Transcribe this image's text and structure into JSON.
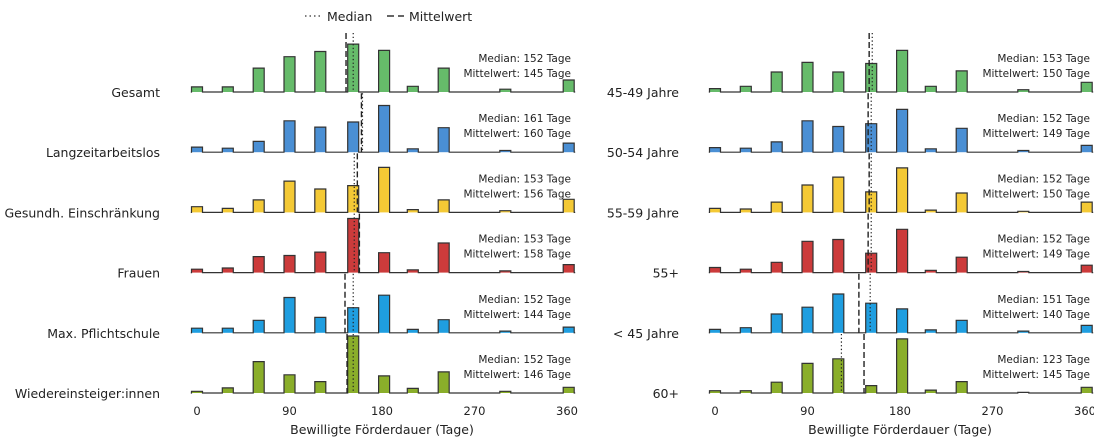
{
  "legend": {
    "median_label": "Median",
    "mean_label": "Mittelwert"
  },
  "colors": {
    "green": "#66bb6a",
    "blue": "#4a8fd4",
    "yellow": "#f4c935",
    "red": "#cc3b3b",
    "cyan": "#1f9ee0",
    "olive": "#8aae2a",
    "outline": "#333333"
  },
  "chart_data": [
    {
      "type": "area",
      "xlabel": "Bewilligte Förderdauer (Tage)",
      "xlim": [
        0,
        366
      ],
      "xticks": [
        0,
        90,
        180,
        270,
        360
      ],
      "rows": [
        {
          "name": "Gesamt",
          "color": "green",
          "median": 152,
          "mean": 145,
          "median_text": "Median: 152 Tage",
          "mean_text": "Mittelwert: 145 Tage",
          "bins": [
            [
              0,
              0.09
            ],
            [
              30,
              0.09
            ],
            [
              60,
              0.42
            ],
            [
              90,
              0.62
            ],
            [
              120,
              0.71
            ],
            [
              152,
              0.84
            ],
            [
              182,
              0.73
            ],
            [
              210,
              0.1
            ],
            [
              240,
              0.42
            ],
            [
              300,
              0.05
            ],
            [
              365,
              0.21
            ]
          ]
        },
        {
          "name": "Langzeitarbeitslos",
          "color": "blue",
          "median": 161,
          "mean": 160,
          "median_text": "Median: 161 Tage",
          "mean_text": "Mittelwert: 160 Tage",
          "bins": [
            [
              0,
              0.09
            ],
            [
              30,
              0.07
            ],
            [
              60,
              0.19
            ],
            [
              90,
              0.55
            ],
            [
              120,
              0.44
            ],
            [
              152,
              0.53
            ],
            [
              182,
              0.82
            ],
            [
              210,
              0.06
            ],
            [
              240,
              0.43
            ],
            [
              300,
              0.03
            ],
            [
              365,
              0.16
            ]
          ]
        },
        {
          "name": "Gesundh. Einschränkung",
          "color": "yellow",
          "median": 153,
          "mean": 156,
          "median_text": "Median: 153 Tage",
          "mean_text": "Mittelwert: 156 Tage",
          "bins": [
            [
              0,
              0.1
            ],
            [
              30,
              0.07
            ],
            [
              60,
              0.22
            ],
            [
              90,
              0.55
            ],
            [
              120,
              0.41
            ],
            [
              152,
              0.47
            ],
            [
              182,
              0.79
            ],
            [
              210,
              0.05
            ],
            [
              240,
              0.22
            ],
            [
              300,
              0.03
            ],
            [
              365,
              0.23
            ]
          ]
        },
        {
          "name": "Frauen",
          "color": "red",
          "median": 153,
          "mean": 158,
          "median_text": "Median: 153 Tage",
          "mean_text": "Mittelwert: 158 Tage",
          "bins": [
            [
              0,
              0.06
            ],
            [
              30,
              0.08
            ],
            [
              60,
              0.28
            ],
            [
              90,
              0.3
            ],
            [
              120,
              0.36
            ],
            [
              152,
              0.95
            ],
            [
              182,
              0.35
            ],
            [
              210,
              0.05
            ],
            [
              240,
              0.52
            ],
            [
              300,
              0.03
            ],
            [
              365,
              0.14
            ]
          ]
        },
        {
          "name": "Max. Pflichtschule",
          "color": "cyan",
          "median": 152,
          "mean": 144,
          "median_text": "Median: 152 Tage",
          "mean_text": "Mittelwert: 144 Tage",
          "bins": [
            [
              0,
              0.08
            ],
            [
              30,
              0.08
            ],
            [
              60,
              0.22
            ],
            [
              90,
              0.62
            ],
            [
              120,
              0.27
            ],
            [
              152,
              0.44
            ],
            [
              182,
              0.66
            ],
            [
              210,
              0.06
            ],
            [
              240,
              0.23
            ],
            [
              300,
              0.03
            ],
            [
              365,
              0.1
            ]
          ]
        },
        {
          "name": "Wiedereinsteiger:innen",
          "color": "olive",
          "median": 152,
          "mean": 146,
          "median_text": "Median: 152 Tage",
          "mean_text": "Mittelwert: 146 Tage",
          "bins": [
            [
              0,
              0.03
            ],
            [
              30,
              0.09
            ],
            [
              60,
              0.55
            ],
            [
              90,
              0.32
            ],
            [
              120,
              0.2
            ],
            [
              152,
              1.0
            ],
            [
              182,
              0.3
            ],
            [
              210,
              0.08
            ],
            [
              240,
              0.37
            ],
            [
              300,
              0.03
            ],
            [
              365,
              0.1
            ]
          ]
        }
      ]
    },
    {
      "type": "area",
      "xlabel": "Bewilligte Förderdauer (Tage)",
      "xlim": [
        0,
        366
      ],
      "xticks": [
        0,
        90,
        180,
        270,
        360
      ],
      "rows": [
        {
          "name": "45-49 Jahre",
          "color": "green",
          "median": 153,
          "mean": 150,
          "median_text": "Median: 153 Tage",
          "mean_text": "Mittelwert: 150 Tage",
          "bins": [
            [
              0,
              0.06
            ],
            [
              30,
              0.1
            ],
            [
              60,
              0.35
            ],
            [
              90,
              0.52
            ],
            [
              120,
              0.35
            ],
            [
              152,
              0.5
            ],
            [
              182,
              0.73
            ],
            [
              210,
              0.1
            ],
            [
              240,
              0.37
            ],
            [
              300,
              0.04
            ],
            [
              365,
              0.17
            ]
          ]
        },
        {
          "name": "50-54 Jahre",
          "color": "blue",
          "median": 152,
          "mean": 149,
          "median_text": "Median: 152 Tage",
          "mean_text": "Mittelwert: 149 Tage",
          "bins": [
            [
              0,
              0.08
            ],
            [
              30,
              0.07
            ],
            [
              60,
              0.18
            ],
            [
              90,
              0.55
            ],
            [
              120,
              0.45
            ],
            [
              152,
              0.5
            ],
            [
              182,
              0.75
            ],
            [
              210,
              0.06
            ],
            [
              240,
              0.42
            ],
            [
              300,
              0.03
            ],
            [
              365,
              0.12
            ]
          ]
        },
        {
          "name": "55-59 Jahre",
          "color": "yellow",
          "median": 152,
          "mean": 150,
          "median_text": "Median: 152 Tage",
          "mean_text": "Mittelwert: 150 Tage",
          "bins": [
            [
              0,
              0.07
            ],
            [
              30,
              0.06
            ],
            [
              60,
              0.18
            ],
            [
              90,
              0.48
            ],
            [
              120,
              0.62
            ],
            [
              152,
              0.36
            ],
            [
              182,
              0.78
            ],
            [
              210,
              0.04
            ],
            [
              240,
              0.34
            ],
            [
              300,
              0.02
            ],
            [
              365,
              0.18
            ]
          ]
        },
        {
          "name": "55+",
          "color": "red",
          "median": 152,
          "mean": 149,
          "median_text": "Median: 152 Tage",
          "mean_text": "Mittelwert: 149 Tage",
          "bins": [
            [
              0,
              0.09
            ],
            [
              30,
              0.06
            ],
            [
              60,
              0.18
            ],
            [
              90,
              0.55
            ],
            [
              120,
              0.58
            ],
            [
              152,
              0.34
            ],
            [
              182,
              0.76
            ],
            [
              210,
              0.04
            ],
            [
              240,
              0.27
            ],
            [
              300,
              0.02
            ],
            [
              365,
              0.13
            ]
          ]
        },
        {
          "name": "< 45 Jahre",
          "color": "cyan",
          "median": 151,
          "mean": 140,
          "median_text": "Median: 151 Tage",
          "mean_text": "Mittelwert: 140 Tage",
          "bins": [
            [
              0,
              0.06
            ],
            [
              30,
              0.09
            ],
            [
              60,
              0.33
            ],
            [
              90,
              0.45
            ],
            [
              120,
              0.68
            ],
            [
              152,
              0.52
            ],
            [
              182,
              0.42
            ],
            [
              210,
              0.05
            ],
            [
              240,
              0.22
            ],
            [
              300,
              0.03
            ],
            [
              365,
              0.13
            ]
          ]
        },
        {
          "name": "60+",
          "color": "olive",
          "median": 123,
          "mean": 145,
          "median_text": "Median: 123 Tage",
          "mean_text": "Mittelwert: 145 Tage",
          "bins": [
            [
              0,
              0.04
            ],
            [
              30,
              0.04
            ],
            [
              60,
              0.19
            ],
            [
              90,
              0.52
            ],
            [
              120,
              0.6
            ],
            [
              152,
              0.13
            ],
            [
              182,
              0.95
            ],
            [
              210,
              0.05
            ],
            [
              240,
              0.2
            ],
            [
              300,
              0.01
            ],
            [
              365,
              0.1
            ]
          ]
        }
      ]
    }
  ]
}
